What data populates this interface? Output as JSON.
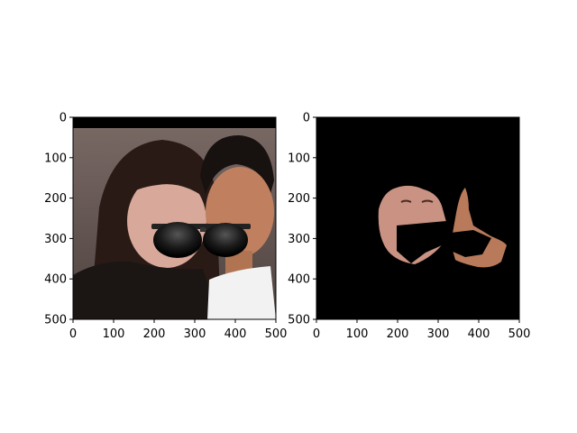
{
  "chart_data": [
    {
      "type": "image",
      "panel": "left",
      "image_description": "photo of a woman and a man, with sunglasses overlay on the woman's face",
      "x_ticks": [
        0,
        100,
        200,
        300,
        400,
        500
      ],
      "y_ticks": [
        0,
        100,
        200,
        300,
        400,
        500
      ],
      "xlim": [
        0,
        500
      ],
      "ylim": [
        500,
        0
      ]
    },
    {
      "type": "image",
      "panel": "right",
      "image_description": "black background with segmented skin region of two faces, masked area in black",
      "x_ticks": [
        0,
        100,
        200,
        300,
        400,
        500
      ],
      "y_ticks": [
        0,
        100,
        200,
        300,
        400,
        500
      ],
      "xlim": [
        0,
        500
      ],
      "ylim": [
        500,
        0
      ]
    }
  ]
}
